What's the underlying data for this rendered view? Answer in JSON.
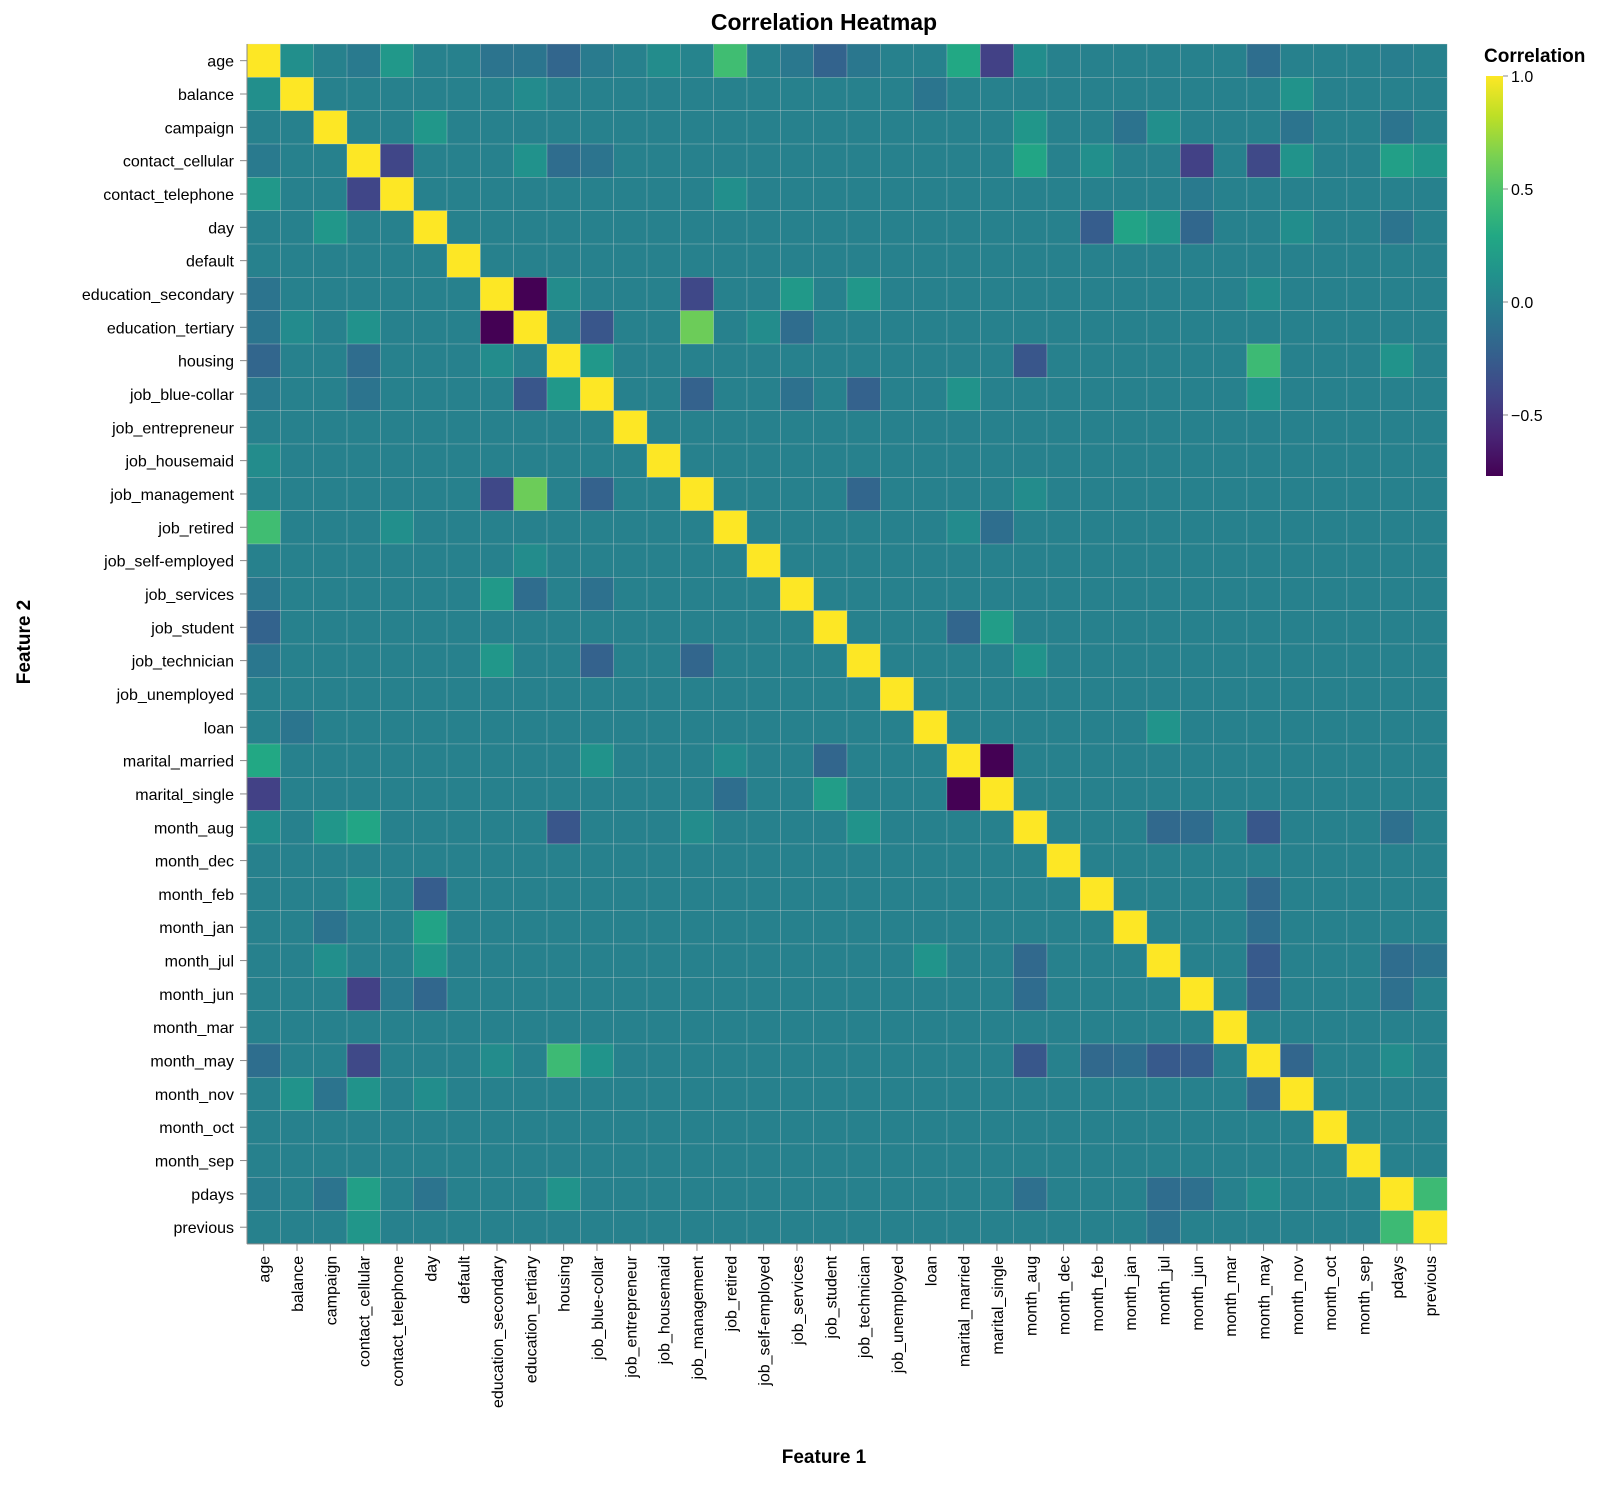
{
  "chart_data": {
    "type": "heatmap",
    "title": "Correlation Heatmap",
    "xlabel": "Feature 1",
    "ylabel": "Feature 2",
    "features": [
      "age",
      "balance",
      "campaign",
      "contact_cellular",
      "contact_telephone",
      "day",
      "default",
      "education_secondary",
      "education_tertiary",
      "housing",
      "job_blue-collar",
      "job_entrepreneur",
      "job_housemaid",
      "job_management",
      "job_retired",
      "job_self-employed",
      "job_services",
      "job_student",
      "job_technician",
      "job_unemployed",
      "loan",
      "marital_married",
      "marital_single",
      "month_aug",
      "month_dec",
      "month_feb",
      "month_jan",
      "month_jul",
      "month_jun",
      "month_mar",
      "month_may",
      "month_nov",
      "month_oct",
      "month_sep",
      "pdays",
      "previous"
    ],
    "legend": {
      "title": "Correlation",
      "ticks": [
        1.0,
        0.5,
        0.0,
        -0.5
      ],
      "tick_labels": [
        "1.0",
        "0.5",
        "0.0",
        "−0.5"
      ],
      "domain": [
        -0.77,
        1.0
      ],
      "colorscheme": "viridis",
      "placement": "right"
    },
    "correlations": {
      "age|balance": 0.1,
      "age|campaign": 0.0,
      "age|contact_cellular": -0.05,
      "age|contact_telephone": 0.17,
      "age|education_secondary": -0.09,
      "age|education_tertiary": -0.08,
      "age|housing": -0.19,
      "age|job_blue-collar": -0.04,
      "age|job_housemaid": 0.08,
      "age|job_management": 0.02,
      "age|job_retired": 0.45,
      "age|job_services": -0.06,
      "age|job_student": -0.21,
      "age|job_technician": -0.07,
      "age|marital_married": 0.29,
      "age|marital_single": -0.43,
      "age|month_aug": 0.09,
      "age|month_may": -0.13,
      "age|pdays": -0.02,
      "balance|loan": -0.08,
      "balance|month_nov": 0.13,
      "balance|education_tertiary": 0.07,
      "campaign|day": 0.16,
      "campaign|month_aug": 0.15,
      "campaign|month_jul": 0.1,
      "campaign|month_nov": -0.09,
      "campaign|month_jan": -0.1,
      "campaign|pdays": -0.09,
      "contact_cellular|contact_telephone": -0.4,
      "contact_cellular|housing": -0.14,
      "contact_cellular|education_tertiary": 0.12,
      "contact_cellular|month_aug": 0.27,
      "contact_cellular|month_jun": -0.43,
      "contact_cellular|month_may": -0.38,
      "contact_cellular|month_nov": 0.13,
      "contact_cellular|pdays": 0.22,
      "contact_cellular|previous": 0.15,
      "contact_cellular|job_blue-collar": -0.09,
      "contact_cellular|month_feb": 0.1,
      "contact_telephone|job_retired": 0.1,
      "contact_telephone|month_jun": -0.05,
      "day|month_feb": -0.25,
      "day|month_jan": 0.25,
      "day|month_jun": -0.18,
      "day|month_jul": 0.16,
      "day|month_nov": 0.09,
      "day|pdays": -0.09,
      "education_secondary|education_tertiary": -0.77,
      "education_secondary|job_management": -0.39,
      "education_secondary|job_services": 0.18,
      "education_secondary|job_technician": 0.16,
      "education_secondary|month_may": 0.08,
      "education_secondary|housing": 0.08,
      "education_tertiary|job_management": 0.6,
      "education_tertiary|job_blue-collar": -0.3,
      "education_tertiary|job_services": -0.14,
      "education_tertiary|job_self-employed": 0.08,
      "housing|month_may": 0.43,
      "housing|month_aug": -0.3,
      "housing|job_blue-collar": 0.17,
      "housing|pdays": 0.13,
      "job_blue-collar|job_management": -0.22,
      "job_blue-collar|job_technician": -0.22,
      "job_blue-collar|marital_married": 0.13,
      "job_blue-collar|month_may": 0.14,
      "job_blue-collar|job_services": -0.11,
      "job_management|job_technician": -0.19,
      "job_management|month_aug": 0.08,
      "job_retired|marital_single": -0.13,
      "job_retired|marital_married": 0.07,
      "job_student|marital_single": 0.21,
      "job_student|marital_married": -0.19,
      "job_technician|month_aug": 0.13,
      "loan|month_jul": 0.14,
      "marital_married|marital_single": -0.77,
      "month_aug|month_may": -0.29,
      "month_feb|month_may": -0.17,
      "month_jan|month_may": -0.13,
      "month_jul|month_may": -0.27,
      "month_jun|month_may": -0.25,
      "month_may|month_nov": -0.19,
      "month_aug|month_jul": -0.17,
      "month_aug|month_jun": -0.15,
      "month_aug|pdays": -0.12,
      "month_jul|pdays": -0.14,
      "month_jun|pdays": -0.12,
      "month_may|pdays": 0.08,
      "pdays|previous": 0.43,
      "month_jul|previous": -0.1
    }
  }
}
